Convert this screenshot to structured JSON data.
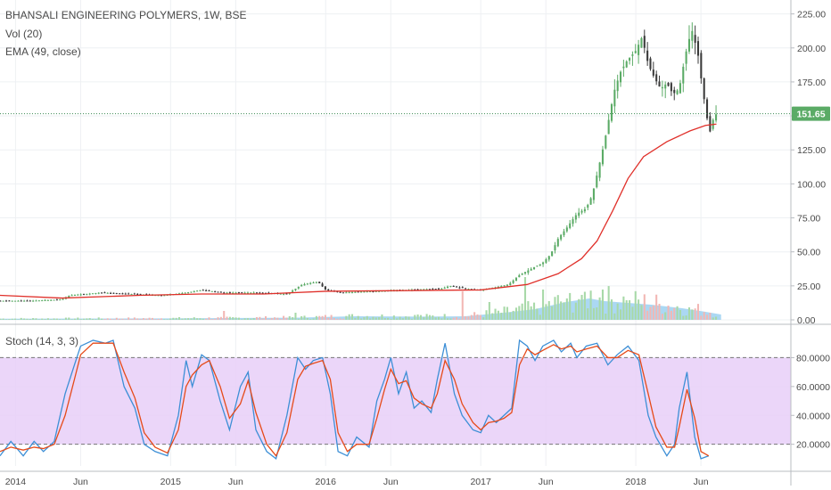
{
  "legend": {
    "main": "BHANSALI ENGINEERING POLYMERS, 1W, BSE",
    "vol": "Vol (20)",
    "ema": "EMA (49, close)",
    "stoch": "Stoch (14, 3, 3)"
  },
  "colors": {
    "up": "#5bab66",
    "down": "#3a3a3a",
    "ema": "#e0302a",
    "vol_ma": "#8fcbef",
    "vol_up": "#a8d9a8",
    "vol_down": "#f2b7b4",
    "stoch_k": "#3d8fd6",
    "stoch_d": "#e64a19",
    "stoch_band": "#e7cff8",
    "price_tag": "#5bab66",
    "grid": "#eef0f3"
  },
  "chart_data": [
    {
      "type": "candlestick",
      "title": "BHANSALI ENGINEERING POLYMERS, 1W, BSE",
      "ylim": [
        0,
        230
      ],
      "yticks": [
        0,
        25,
        50,
        75,
        100,
        125,
        150,
        175,
        200,
        225
      ],
      "ytick_labels": [
        "0.00",
        "25.00",
        "50.00",
        "75.00",
        "100.00",
        "125.00",
        "150.00",
        "175.00",
        "200.00",
        "225.00"
      ],
      "xticks": [
        2014.0,
        2014.42,
        2015.0,
        2015.42,
        2016.0,
        2016.42,
        2017.0,
        2017.42,
        2018.0,
        2018.42
      ],
      "xtick_labels": [
        "2014",
        "Jun",
        "2015",
        "Jun",
        "2016",
        "Jun",
        "2017",
        "Jun",
        "2018",
        "Jun"
      ],
      "xlim": [
        2013.9,
        2019.0
      ],
      "last_price": 151.65,
      "last_price_label": "151.65",
      "price_path": [
        [
          2013.9,
          14
        ],
        [
          2014.1,
          14
        ],
        [
          2014.3,
          15
        ],
        [
          2014.35,
          18
        ],
        [
          2014.55,
          20
        ],
        [
          2014.75,
          19
        ],
        [
          2014.95,
          18
        ],
        [
          2015.1,
          20
        ],
        [
          2015.2,
          22
        ],
        [
          2015.35,
          20
        ],
        [
          2015.55,
          20
        ],
        [
          2015.75,
          19
        ],
        [
          2015.85,
          26
        ],
        [
          2015.95,
          28
        ],
        [
          2016.0,
          22
        ],
        [
          2016.1,
          20
        ],
        [
          2016.3,
          21
        ],
        [
          2016.55,
          22
        ],
        [
          2016.75,
          23
        ],
        [
          2016.8,
          25
        ],
        [
          2016.9,
          23
        ],
        [
          2017.0,
          22
        ],
        [
          2017.1,
          24
        ],
        [
          2017.18,
          26
        ],
        [
          2017.25,
          33
        ],
        [
          2017.3,
          36
        ],
        [
          2017.4,
          42
        ],
        [
          2017.45,
          48
        ],
        [
          2017.5,
          60
        ],
        [
          2017.55,
          67
        ],
        [
          2017.62,
          78
        ],
        [
          2017.68,
          82
        ],
        [
          2017.72,
          92
        ],
        [
          2017.76,
          112
        ],
        [
          2017.8,
          132
        ],
        [
          2017.83,
          150
        ],
        [
          2017.86,
          168
        ],
        [
          2017.9,
          182
        ],
        [
          2017.94,
          190
        ],
        [
          2018.0,
          198
        ],
        [
          2018.04,
          208
        ],
        [
          2018.08,
          188
        ],
        [
          2018.12,
          178
        ],
        [
          2018.16,
          170
        ],
        [
          2018.2,
          174
        ],
        [
          2018.24,
          166
        ],
        [
          2018.28,
          170
        ],
        [
          2018.32,
          195
        ],
        [
          2018.36,
          214
        ],
        [
          2018.4,
          196
        ],
        [
          2018.43,
          170
        ],
        [
          2018.46,
          148
        ],
        [
          2018.48,
          138
        ],
        [
          2018.5,
          148
        ],
        [
          2018.52,
          151.65
        ]
      ],
      "ema_path": [
        [
          2013.9,
          18
        ],
        [
          2014.3,
          16
        ],
        [
          2014.8,
          18
        ],
        [
          2015.2,
          19
        ],
        [
          2015.6,
          19
        ],
        [
          2016.0,
          21
        ],
        [
          2016.5,
          21.5
        ],
        [
          2017.0,
          22
        ],
        [
          2017.3,
          26
        ],
        [
          2017.5,
          34
        ],
        [
          2017.65,
          45
        ],
        [
          2017.75,
          58
        ],
        [
          2017.85,
          80
        ],
        [
          2017.95,
          104
        ],
        [
          2018.05,
          120
        ],
        [
          2018.2,
          131
        ],
        [
          2018.35,
          139
        ],
        [
          2018.45,
          143
        ],
        [
          2018.52,
          144
        ]
      ]
    },
    {
      "type": "bar",
      "title": "Vol (20)",
      "volume_ma_path": [
        [
          2013.9,
          0.6
        ],
        [
          2015.0,
          0.8
        ],
        [
          2015.8,
          1.2
        ],
        [
          2016.2,
          2.0
        ],
        [
          2016.6,
          1.8
        ],
        [
          2016.9,
          2.0
        ],
        [
          2017.15,
          4.0
        ],
        [
          2017.35,
          6.0
        ],
        [
          2017.55,
          10.0
        ],
        [
          2017.7,
          12.0
        ],
        [
          2017.8,
          10.5
        ],
        [
          2017.95,
          9.5
        ],
        [
          2018.1,
          8.5
        ],
        [
          2018.3,
          6.5
        ],
        [
          2018.45,
          4.5
        ],
        [
          2018.55,
          3.0
        ]
      ],
      "volume_spikes": [
        [
          2015.35,
          5
        ],
        [
          2015.8,
          4
        ],
        [
          2016.6,
          3
        ],
        [
          2016.88,
          16
        ],
        [
          2017.05,
          10
        ],
        [
          2017.28,
          24
        ],
        [
          2017.4,
          17
        ],
        [
          2017.55,
          12
        ],
        [
          2017.65,
          14
        ],
        [
          2017.78,
          17
        ],
        [
          2017.95,
          11
        ],
        [
          2018.15,
          9
        ],
        [
          2018.35,
          7
        ],
        [
          2018.48,
          4
        ]
      ]
    },
    {
      "type": "line",
      "title": "Stoch (14, 3, 3)",
      "ylim": [
        5,
        100
      ],
      "yticks": [
        20,
        40,
        60,
        80
      ],
      "ytick_labels": [
        "20.0000",
        "40.0000",
        "60.0000",
        "80.0000"
      ],
      "band": [
        20,
        80
      ],
      "series": [
        {
          "name": "%K",
          "points": [
            [
              2013.9,
              12
            ],
            [
              2013.97,
              22
            ],
            [
              2014.05,
              12
            ],
            [
              2014.12,
              22
            ],
            [
              2014.18,
              15
            ],
            [
              2014.25,
              22
            ],
            [
              2014.32,
              55
            ],
            [
              2014.38,
              75
            ],
            [
              2014.42,
              88
            ],
            [
              2014.5,
              92
            ],
            [
              2014.58,
              90
            ],
            [
              2014.63,
              92
            ],
            [
              2014.7,
              60
            ],
            [
              2014.77,
              45
            ],
            [
              2014.83,
              20
            ],
            [
              2014.9,
              15
            ],
            [
              2014.98,
              12
            ],
            [
              2015.05,
              40
            ],
            [
              2015.1,
              78
            ],
            [
              2015.14,
              60
            ],
            [
              2015.2,
              82
            ],
            [
              2015.25,
              78
            ],
            [
              2015.32,
              50
            ],
            [
              2015.38,
              30
            ],
            [
              2015.45,
              60
            ],
            [
              2015.5,
              70
            ],
            [
              2015.55,
              30
            ],
            [
              2015.62,
              15
            ],
            [
              2015.68,
              10
            ],
            [
              2015.75,
              40
            ],
            [
              2015.82,
              80
            ],
            [
              2015.87,
              72
            ],
            [
              2015.92,
              78
            ],
            [
              2015.98,
              80
            ],
            [
              2016.03,
              55
            ],
            [
              2016.08,
              15
            ],
            [
              2016.14,
              12
            ],
            [
              2016.2,
              25
            ],
            [
              2016.28,
              18
            ],
            [
              2016.33,
              50
            ],
            [
              2016.38,
              65
            ],
            [
              2016.42,
              80
            ],
            [
              2016.47,
              55
            ],
            [
              2016.52,
              70
            ],
            [
              2016.57,
              45
            ],
            [
              2016.62,
              50
            ],
            [
              2016.68,
              42
            ],
            [
              2016.72,
              65
            ],
            [
              2016.77,
              90
            ],
            [
              2016.83,
              55
            ],
            [
              2016.88,
              40
            ],
            [
              2016.95,
              30
            ],
            [
              2017.0,
              28
            ],
            [
              2017.05,
              40
            ],
            [
              2017.1,
              35
            ],
            [
              2017.15,
              40
            ],
            [
              2017.2,
              45
            ],
            [
              2017.25,
              92
            ],
            [
              2017.3,
              88
            ],
            [
              2017.35,
              78
            ],
            [
              2017.4,
              88
            ],
            [
              2017.47,
              92
            ],
            [
              2017.52,
              84
            ],
            [
              2017.58,
              90
            ],
            [
              2017.62,
              80
            ],
            [
              2017.68,
              88
            ],
            [
              2017.75,
              90
            ],
            [
              2017.82,
              75
            ],
            [
              2017.88,
              82
            ],
            [
              2017.95,
              88
            ],
            [
              2018.02,
              78
            ],
            [
              2018.08,
              40
            ],
            [
              2018.13,
              25
            ],
            [
              2018.2,
              12
            ],
            [
              2018.25,
              20
            ],
            [
              2018.28,
              45
            ],
            [
              2018.33,
              70
            ],
            [
              2018.38,
              25
            ],
            [
              2018.42,
              10
            ],
            [
              2018.47,
              12
            ]
          ]
        },
        {
          "name": "%D",
          "points": [
            [
              2013.9,
              15
            ],
            [
              2013.97,
              18
            ],
            [
              2014.05,
              16
            ],
            [
              2014.12,
              18
            ],
            [
              2014.18,
              17
            ],
            [
              2014.25,
              20
            ],
            [
              2014.32,
              40
            ],
            [
              2014.38,
              65
            ],
            [
              2014.42,
              82
            ],
            [
              2014.5,
              90
            ],
            [
              2014.58,
              90
            ],
            [
              2014.63,
              90
            ],
            [
              2014.7,
              70
            ],
            [
              2014.77,
              52
            ],
            [
              2014.83,
              28
            ],
            [
              2014.9,
              18
            ],
            [
              2014.98,
              14
            ],
            [
              2015.05,
              30
            ],
            [
              2015.1,
              60
            ],
            [
              2015.14,
              68
            ],
            [
              2015.2,
              75
            ],
            [
              2015.25,
              78
            ],
            [
              2015.32,
              60
            ],
            [
              2015.38,
              38
            ],
            [
              2015.45,
              48
            ],
            [
              2015.5,
              64
            ],
            [
              2015.55,
              42
            ],
            [
              2015.62,
              20
            ],
            [
              2015.68,
              12
            ],
            [
              2015.75,
              28
            ],
            [
              2015.82,
              65
            ],
            [
              2015.87,
              74
            ],
            [
              2015.92,
              76
            ],
            [
              2015.98,
              78
            ],
            [
              2016.03,
              65
            ],
            [
              2016.08,
              28
            ],
            [
              2016.14,
              15
            ],
            [
              2016.2,
              20
            ],
            [
              2016.28,
              20
            ],
            [
              2016.33,
              38
            ],
            [
              2016.38,
              58
            ],
            [
              2016.42,
              72
            ],
            [
              2016.47,
              62
            ],
            [
              2016.52,
              64
            ],
            [
              2016.57,
              52
            ],
            [
              2016.62,
              48
            ],
            [
              2016.68,
              45
            ],
            [
              2016.72,
              55
            ],
            [
              2016.77,
              78
            ],
            [
              2016.83,
              65
            ],
            [
              2016.88,
              48
            ],
            [
              2016.95,
              35
            ],
            [
              2017.0,
              30
            ],
            [
              2017.05,
              35
            ],
            [
              2017.1,
              36
            ],
            [
              2017.15,
              38
            ],
            [
              2017.2,
              42
            ],
            [
              2017.25,
              75
            ],
            [
              2017.3,
              86
            ],
            [
              2017.35,
              82
            ],
            [
              2017.4,
              85
            ],
            [
              2017.47,
              89
            ],
            [
              2017.52,
              86
            ],
            [
              2017.58,
              88
            ],
            [
              2017.62,
              84
            ],
            [
              2017.68,
              86
            ],
            [
              2017.75,
              88
            ],
            [
              2017.82,
              80
            ],
            [
              2017.88,
              80
            ],
            [
              2017.95,
              85
            ],
            [
              2018.02,
              82
            ],
            [
              2018.08,
              55
            ],
            [
              2018.13,
              32
            ],
            [
              2018.2,
              18
            ],
            [
              2018.25,
              18
            ],
            [
              2018.28,
              32
            ],
            [
              2018.33,
              58
            ],
            [
              2018.38,
              38
            ],
            [
              2018.42,
              15
            ],
            [
              2018.47,
              12
            ]
          ]
        }
      ]
    }
  ]
}
